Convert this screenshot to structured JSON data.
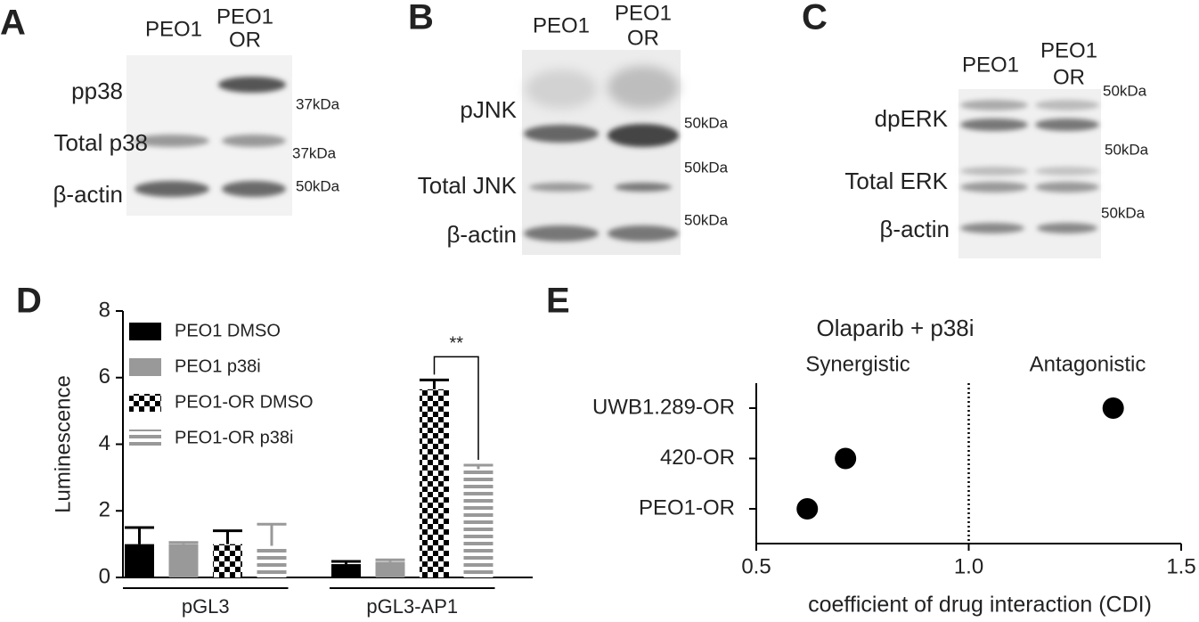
{
  "blots": [
    {
      "panel": "A",
      "columns": [
        [
          "PEO1"
        ],
        [
          "PEO1",
          "OR"
        ]
      ],
      "rows": [
        {
          "label": "pp38",
          "size": "37kDa"
        },
        {
          "label": "Total p38",
          "size": "37kDa"
        },
        {
          "label": "β-actin",
          "size": "50kDa"
        }
      ]
    },
    {
      "panel": "B",
      "columns": [
        [
          "PEO1"
        ],
        [
          "PEO1",
          "OR"
        ]
      ],
      "rows": [
        {
          "label": "pJNK",
          "size": "50kDa"
        },
        {
          "label": "Total JNK",
          "size": "50kDa"
        },
        {
          "label": "β-actin",
          "size": "50kDa"
        }
      ]
    },
    {
      "panel": "C",
      "columns": [
        [
          "PEO1"
        ],
        [
          "PEO1",
          "OR"
        ]
      ],
      "rows": [
        {
          "label": "dpERK",
          "size": "50kDa"
        },
        {
          "label": "Total ERK",
          "size": "50kDa"
        },
        {
          "label": "β-actin",
          "size": "50kDa"
        }
      ]
    }
  ],
  "chart_data": [
    {
      "type": "bar",
      "panel": "D",
      "ylabel": "Luminescence",
      "categories": [
        "pGL3",
        "pGL3-AP1"
      ],
      "series": [
        {
          "name": "PEO1 DMSO",
          "color": "#000000",
          "pattern": "solid",
          "values": [
            1.0,
            0.4
          ],
          "errors": [
            0.5,
            0.08
          ]
        },
        {
          "name": "PEO1 p38i",
          "color": "#999999",
          "pattern": "solid",
          "values": [
            1.0,
            0.47
          ],
          "errors": [
            0.05,
            0.06
          ]
        },
        {
          "name": "PEO1-OR DMSO",
          "color": "#000000",
          "pattern": "checker",
          "values": [
            1.0,
            5.65
          ],
          "errors": [
            0.4,
            0.28
          ]
        },
        {
          "name": "PEO1-OR p38i",
          "color": "#999999",
          "pattern": "stripes",
          "values": [
            0.95,
            3.25
          ],
          "errors": [
            0.65,
            0.12
          ]
        }
      ],
      "ylim": [
        0,
        8
      ],
      "yticks": [
        0,
        2,
        4,
        6,
        8
      ],
      "legend": "upper left",
      "annotation": "**"
    },
    {
      "type": "scatter",
      "panel": "E",
      "title": "Olaparib + p38i",
      "regions": [
        "Synergistic",
        "Antagonistic"
      ],
      "categories": [
        "UWB1.289-OR",
        "420-OR",
        "PEO1-OR"
      ],
      "values": [
        1.34,
        0.71,
        0.62
      ],
      "color": "#000000",
      "xlim": [
        0.5,
        1.5
      ],
      "xticks": [
        0.5,
        {
          "value": 1,
          "label": "1.0"
        },
        1.5
      ],
      "reference_line": 1,
      "xlabel": "coefficient of drug interaction (CDI)"
    }
  ]
}
